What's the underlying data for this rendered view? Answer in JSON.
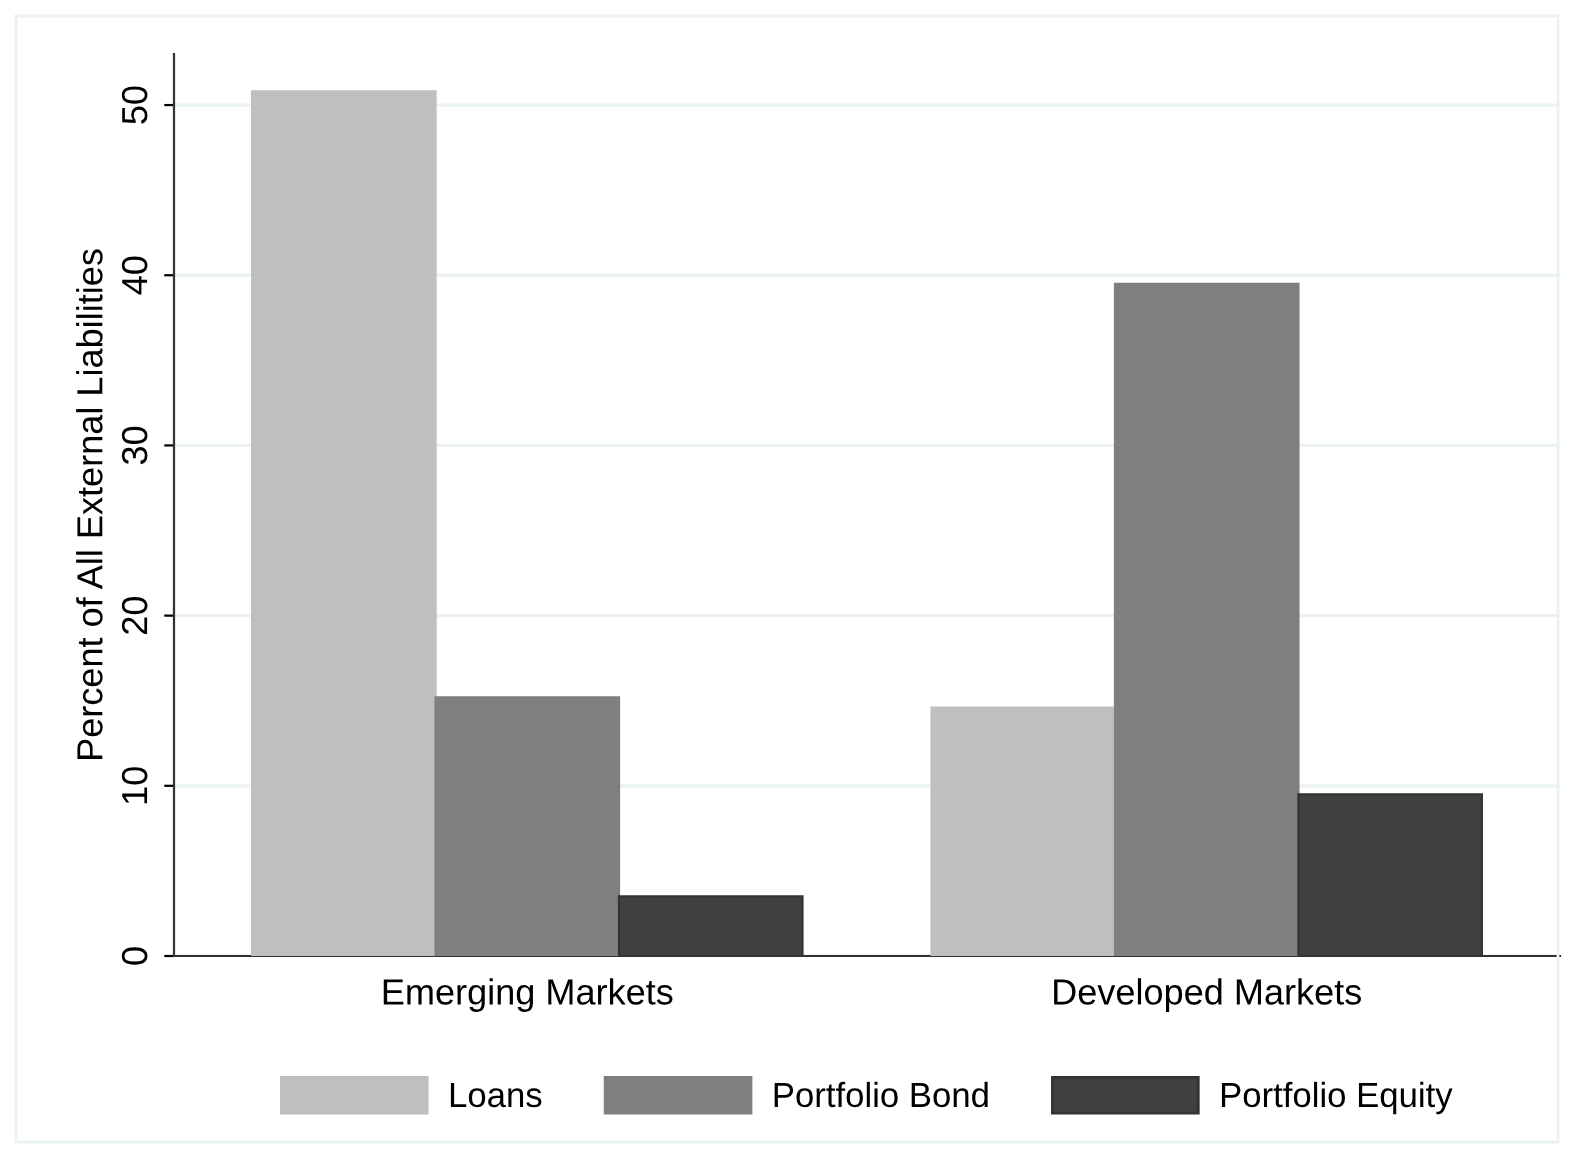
{
  "chart_data": {
    "type": "bar",
    "ylabel": "Percent of All External Liabilities",
    "categories": [
      "Emerging Markets",
      "Developed Markets"
    ],
    "series": [
      {
        "name": "Loans",
        "color": "#bfbfbf",
        "values": [
          50.8,
          14.6
        ]
      },
      {
        "name": "Portfolio Bond",
        "color": "#7f7f7f",
        "values": [
          15.2,
          39.5
        ]
      },
      {
        "name": "Portfolio Equity",
        "color": "#404040",
        "values": [
          3.5,
          9.5
        ]
      }
    ],
    "ylim": [
      0,
      53
    ],
    "yticks": [
      0,
      10,
      20,
      30,
      40,
      50
    ],
    "grid": "y",
    "legend": "bottom"
  }
}
